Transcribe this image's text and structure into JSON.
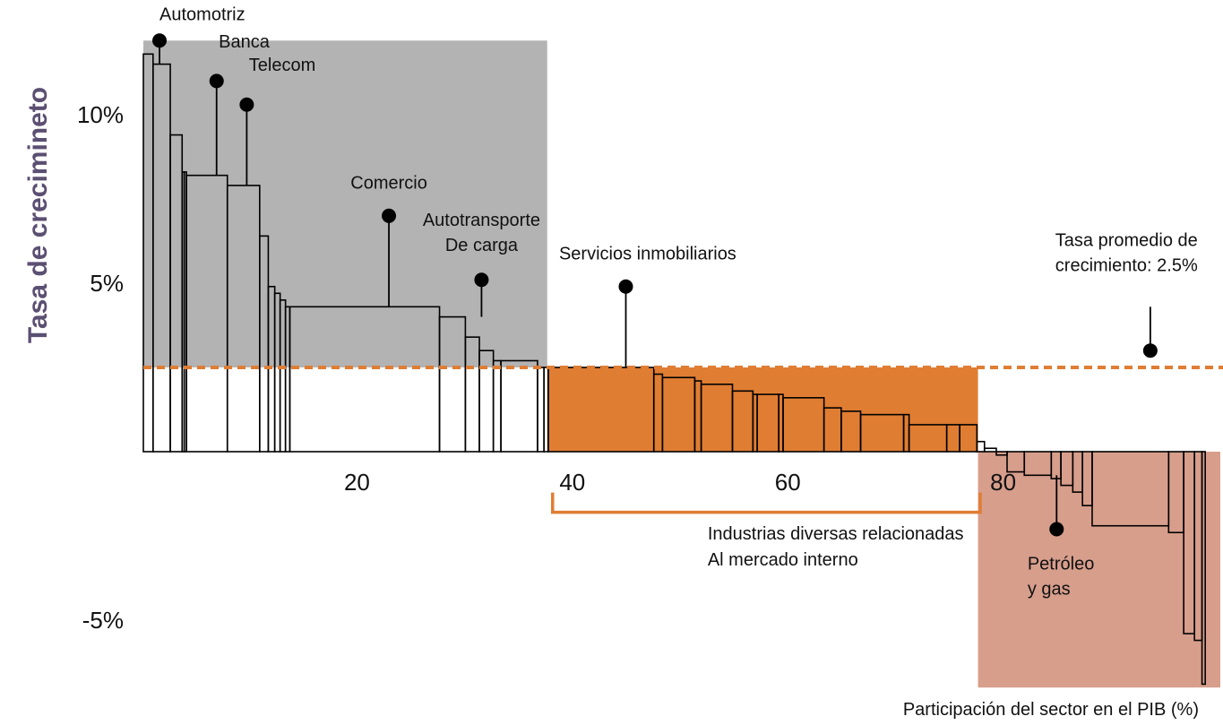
{
  "chart_data": {
    "type": "bar",
    "subtype": "variable-width growth chart",
    "ylabel": "Tasa de crecimineto",
    "xlabel": "Participación del sector en el PIB (%)",
    "x_ticks": [
      20,
      40,
      60,
      80
    ],
    "x_ticks_labels": [
      "20",
      "40",
      "60",
      "80"
    ],
    "y_ticks": [
      10,
      5,
      -5
    ],
    "y_ticks_labels": [
      "10%",
      "5%",
      "-5%"
    ],
    "xlim": [
      0,
      100
    ],
    "ylim": [
      -7,
      12
    ],
    "average_rate": 2.5,
    "colors": {
      "average_line": "#df7d33",
      "above_average_region": "#b3b3b3",
      "domestic_industries_region": "#df7d33",
      "negative_region": "#d79e8c",
      "bar_stroke": "#000000"
    },
    "regions": [
      {
        "name": "above-average",
        "x": [
          0,
          37.5
        ],
        "y": [
          2.5,
          12.2
        ]
      },
      {
        "name": "domestic-industries",
        "x": [
          37.5,
          77.5
        ],
        "y": [
          0,
          2.5
        ]
      },
      {
        "name": "negative",
        "x": [
          77.5,
          100
        ],
        "y": [
          -7,
          0
        ]
      }
    ],
    "bars": [
      {
        "x0": 0.0,
        "x1": 0.9,
        "y": 11.8
      },
      {
        "x0": 0.9,
        "x1": 2.5,
        "y": 11.5
      },
      {
        "x0": 2.5,
        "x1": 3.6,
        "y": 9.4
      },
      {
        "x0": 3.6,
        "x1": 3.8,
        "y": 8.3
      },
      {
        "x0": 3.8,
        "x1": 4.0,
        "y": 8.3
      },
      {
        "x0": 4.0,
        "x1": 7.8,
        "y": 8.2
      },
      {
        "x0": 7.8,
        "x1": 10.8,
        "y": 7.9
      },
      {
        "x0": 10.8,
        "x1": 11.6,
        "y": 6.4
      },
      {
        "x0": 11.6,
        "x1": 12.2,
        "y": 4.9
      },
      {
        "x0": 12.2,
        "x1": 12.7,
        "y": 4.7
      },
      {
        "x0": 12.7,
        "x1": 13.2,
        "y": 4.5
      },
      {
        "x0": 13.2,
        "x1": 13.6,
        "y": 4.3
      },
      {
        "x0": 13.6,
        "x1": 27.5,
        "y": 4.3
      },
      {
        "x0": 27.5,
        "x1": 29.9,
        "y": 4.0
      },
      {
        "x0": 29.9,
        "x1": 31.2,
        "y": 3.4
      },
      {
        "x0": 31.2,
        "x1": 32.5,
        "y": 3.0
      },
      {
        "x0": 32.5,
        "x1": 33.2,
        "y": 2.7
      },
      {
        "x0": 33.2,
        "x1": 36.6,
        "y": 2.7
      },
      {
        "x0": 36.6,
        "x1": 37.2,
        "y": 2.5
      },
      {
        "x0": 37.2,
        "x1": 37.6,
        "y": 2.5
      },
      {
        "x0": 37.6,
        "x1": 47.4,
        "y": 2.5
      },
      {
        "x0": 47.4,
        "x1": 48.2,
        "y": 2.3
      },
      {
        "x0": 48.2,
        "x1": 51.2,
        "y": 2.2
      },
      {
        "x0": 51.2,
        "x1": 51.8,
        "y": 2.1
      },
      {
        "x0": 51.8,
        "x1": 54.7,
        "y": 2.0
      },
      {
        "x0": 54.7,
        "x1": 56.6,
        "y": 1.8
      },
      {
        "x0": 56.6,
        "x1": 57.0,
        "y": 1.7
      },
      {
        "x0": 57.0,
        "x1": 59.0,
        "y": 1.7
      },
      {
        "x0": 59.0,
        "x1": 59.4,
        "y": 1.7
      },
      {
        "x0": 59.4,
        "x1": 63.2,
        "y": 1.6
      },
      {
        "x0": 63.2,
        "x1": 64.8,
        "y": 1.3
      },
      {
        "x0": 64.8,
        "x1": 66.6,
        "y": 1.2
      },
      {
        "x0": 66.6,
        "x1": 70.6,
        "y": 1.1
      },
      {
        "x0": 70.6,
        "x1": 71.1,
        "y": 1.1
      },
      {
        "x0": 71.1,
        "x1": 74.6,
        "y": 0.8
      },
      {
        "x0": 74.6,
        "x1": 75.8,
        "y": 0.8
      },
      {
        "x0": 75.8,
        "x1": 77.4,
        "y": 0.8
      },
      {
        "x0": 77.4,
        "x1": 78.1,
        "y": 0.3
      },
      {
        "x0": 78.1,
        "x1": 79.2,
        "y": 0.1
      },
      {
        "x0": 79.2,
        "x1": 80.2,
        "y": -0.1
      },
      {
        "x0": 80.2,
        "x1": 81.8,
        "y": -0.6
      },
      {
        "x0": 81.8,
        "x1": 84.3,
        "y": -0.7
      },
      {
        "x0": 84.3,
        "x1": 85.2,
        "y": -0.8
      },
      {
        "x0": 85.2,
        "x1": 86.3,
        "y": -1.0
      },
      {
        "x0": 86.3,
        "x1": 87.2,
        "y": -1.2
      },
      {
        "x0": 87.2,
        "x1": 88.1,
        "y": -1.6
      },
      {
        "x0": 88.1,
        "x1": 95.2,
        "y": -2.2
      },
      {
        "x0": 95.2,
        "x1": 96.6,
        "y": -2.4
      },
      {
        "x0": 96.6,
        "x1": 97.6,
        "y": -5.4
      },
      {
        "x0": 97.6,
        "x1": 98.3,
        "y": -5.6
      },
      {
        "x0": 98.3,
        "x1": 98.6,
        "y": -6.9
      }
    ],
    "annotations": [
      {
        "lines": [
          "Automotriz"
        ],
        "x": 1.5,
        "y": 11.5,
        "dot_y": 12.2,
        "label_x": 1.5,
        "label_y": 12.8,
        "align": "start"
      },
      {
        "lines": [
          "Banca"
        ],
        "x": 6.8,
        "y": 8.2,
        "dot_y": 11.0,
        "label_x": 7.0,
        "label_y": 12.0,
        "align": "start"
      },
      {
        "lines": [
          "Telecom"
        ],
        "x": 9.6,
        "y": 7.9,
        "dot_y": 10.3,
        "label_x": 9.8,
        "label_y": 11.3,
        "align": "start"
      },
      {
        "lines": [
          "Comercio"
        ],
        "x": 22.8,
        "y": 4.3,
        "dot_y": 7.0,
        "label_x": 22.8,
        "label_y": 7.8,
        "align": "middle"
      },
      {
        "lines": [
          "Autotransporte",
          "De carga"
        ],
        "x": 31.4,
        "y": 4.0,
        "dot_y": 5.1,
        "label_x": 31.4,
        "label_y": 6.7,
        "align": "middle"
      },
      {
        "lines": [
          "Servicios inmobiliarios"
        ],
        "x": 44.8,
        "y": 2.5,
        "dot_y": 4.9,
        "label_x": 38.6,
        "label_y": 5.7,
        "align": "start"
      },
      {
        "lines": [
          "Tasa promedio de",
          "crecimiento: 2.5%"
        ],
        "x": 93.5,
        "y": 4.3,
        "dot_y": 3.0,
        "label_x": 97.9,
        "label_y": 6.1,
        "align": "end"
      },
      {
        "lines": [
          "Petróleo",
          "y gas"
        ],
        "x": 84.8,
        "y": -0.7,
        "dot_y": -2.3,
        "label_x": 82.1,
        "label_y": -3.5,
        "align": "start"
      }
    ],
    "bracket": {
      "x0": 38.0,
      "x1": 77.7,
      "y": -1.8,
      "lines": [
        "Industrias diversas relacionadas",
        "Al mercado interno"
      ],
      "label_x": 52.4,
      "label_y": -2.6
    }
  }
}
